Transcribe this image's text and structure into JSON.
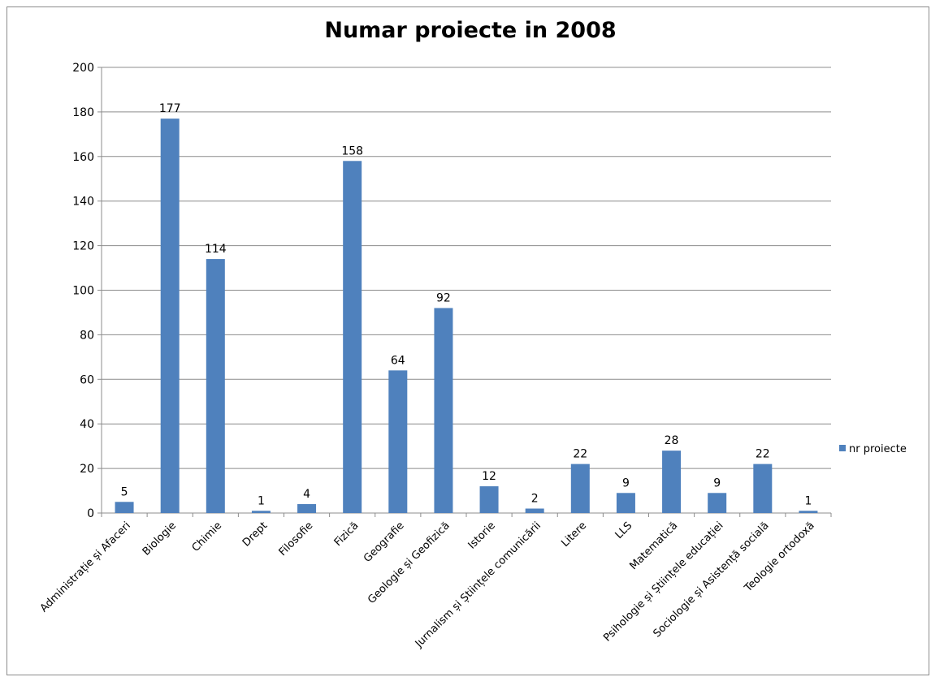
{
  "chart_data": {
    "type": "bar",
    "title": "Numar proiecte in 2008",
    "xlabel": "",
    "ylabel": "",
    "ylim": [
      0,
      200
    ],
    "yticks": [
      0,
      20,
      40,
      60,
      80,
      100,
      120,
      140,
      160,
      180,
      200
    ],
    "grid": true,
    "legend_position": "right",
    "categories": [
      "Administrație și Afaceri",
      "Biologie",
      "Chimie",
      "Drept",
      "Filosofie",
      "Fizică",
      "Geografie",
      "Geologie și Geofizică",
      "Istorie",
      "Jurnalism și Științele comunicării",
      "Litere",
      "LLS",
      "Matematică",
      "Psihologie și Științele educației",
      "Sociologie și Asistență socială",
      "Teologie ortodoxă"
    ],
    "series": [
      {
        "name": "nr proiecte",
        "color": "#4f81bd",
        "values": [
          5,
          177,
          114,
          1,
          4,
          158,
          64,
          92,
          12,
          2,
          22,
          9,
          28,
          9,
          22,
          1
        ]
      }
    ]
  }
}
